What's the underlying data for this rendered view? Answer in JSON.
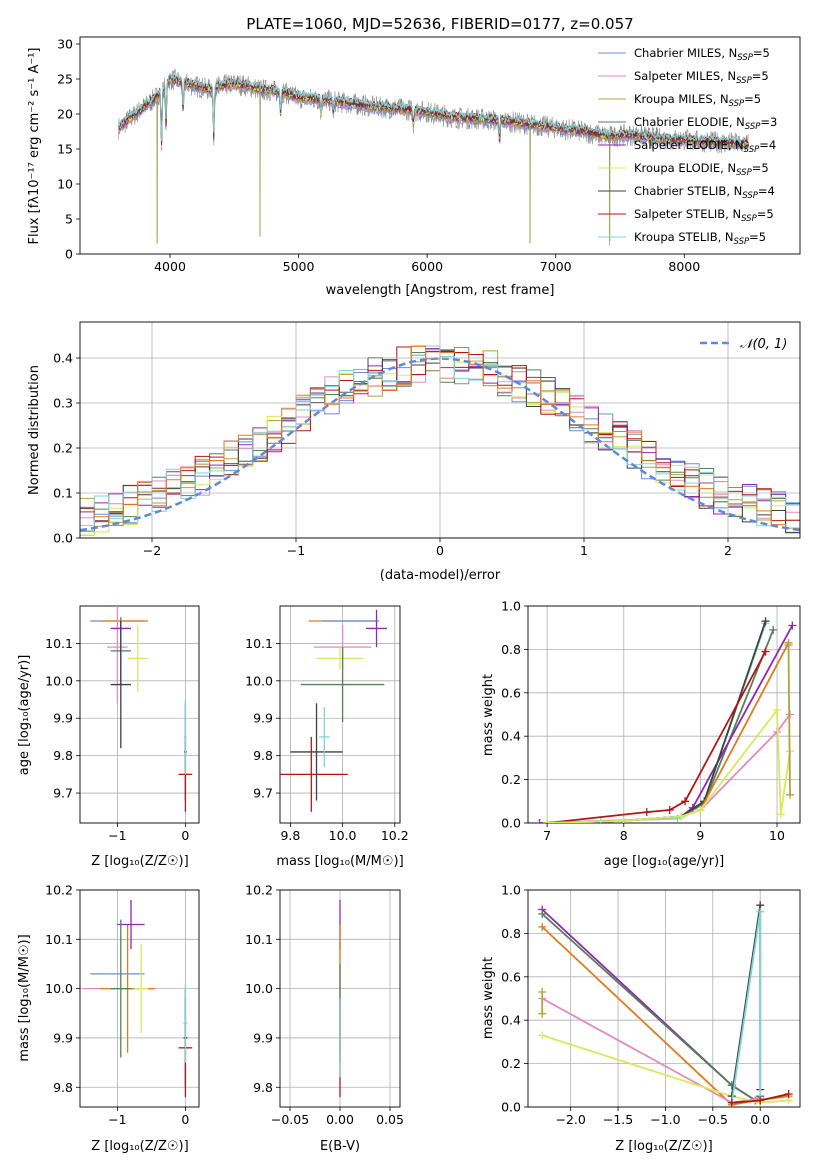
{
  "colors": {
    "chabrier_miles": "#6a8fd8",
    "salpeter_miles": "#e58ac0",
    "kroupa_miles": "#b5a23a",
    "chabrier_elodie": "#55805a",
    "salpeter_elodie": "#8e28b0",
    "kroupa_elodie": "#d8e860",
    "chabrier_stelib": "#404040",
    "salpeter_stelib": "#b01818",
    "kroupa_stelib": "#7fd6d8",
    "orange": "#e07b1e",
    "normal_line": "#5b8bd8"
  },
  "chart_data": [
    {
      "id": "spectrum",
      "type": "line",
      "title": "PLATE=1060, MJD=52636, FIBERID=0177, z=0.057",
      "xlabel": "wavelength [Angstrom, rest frame]",
      "ylabel": "Flux [fλ10⁻¹⁷ erg cm⁻² s⁻¹ A⁻¹]",
      "xlim": [
        3300,
        8900
      ],
      "ylim": [
        0,
        31
      ],
      "xticks": [
        4000,
        5000,
        6000,
        7000,
        8000
      ],
      "yticks": [
        0,
        5,
        10,
        15,
        20,
        25,
        30
      ],
      "grid": false,
      "legend_position": "top-right",
      "legend": [
        {
          "main": "Chabrier MILES, N",
          "sub": "SSP",
          "tail": "=5",
          "color_key": "chabrier_miles"
        },
        {
          "main": "Salpeter MILES, N",
          "sub": "SSP",
          "tail": "=5",
          "color_key": "salpeter_miles"
        },
        {
          "main": "Kroupa MILES, N",
          "sub": "SSP",
          "tail": "=5",
          "color_key": "kroupa_miles"
        },
        {
          "main": "Chabrier ELODIE, N",
          "sub": "SSP",
          "tail": "=3",
          "color_key": "chabrier_elodie"
        },
        {
          "main": "Salpeter ELODIE, N",
          "sub": "SSP",
          "tail": "=4",
          "color_key": "salpeter_elodie"
        },
        {
          "main": "Kroupa ELODIE, N",
          "sub": "SSP",
          "tail": "=5",
          "color_key": "kroupa_elodie"
        },
        {
          "main": "Chabrier STELIB, N",
          "sub": "SSP",
          "tail": "=4",
          "color_key": "chabrier_stelib"
        },
        {
          "main": "Salpeter STELIB, N",
          "sub": "SSP",
          "tail": "=5",
          "color_key": "salpeter_stelib"
        },
        {
          "main": "Kroupa STELIB, N",
          "sub": "SSP",
          "tail": "=5",
          "color_key": "kroupa_stelib"
        }
      ],
      "continuum": [
        [
          3600,
          18
        ],
        [
          3700,
          19.5
        ],
        [
          3800,
          21
        ],
        [
          3900,
          22.5
        ],
        [
          4000,
          25
        ],
        [
          4100,
          24.5
        ],
        [
          4200,
          24
        ],
        [
          4300,
          23.5
        ],
        [
          4400,
          24
        ],
        [
          4500,
          24.3
        ],
        [
          4600,
          24
        ],
        [
          4700,
          23.5
        ],
        [
          4800,
          23.3
        ],
        [
          4900,
          23
        ],
        [
          5000,
          22.3
        ],
        [
          5200,
          22
        ],
        [
          5400,
          21.5
        ],
        [
          5600,
          21
        ],
        [
          5800,
          20.7
        ],
        [
          6000,
          20.3
        ],
        [
          6200,
          19.5
        ],
        [
          6400,
          19.3
        ],
        [
          6600,
          19
        ],
        [
          6800,
          18.5
        ],
        [
          7000,
          18
        ],
        [
          7200,
          17.5
        ],
        [
          7400,
          16.8
        ],
        [
          7600,
          17
        ],
        [
          7800,
          16.5
        ],
        [
          8000,
          16.3
        ],
        [
          8200,
          16
        ],
        [
          8400,
          15.8
        ],
        [
          8500,
          15.7
        ]
      ],
      "absorption_lines": [
        [
          3934,
          8
        ],
        [
          3969,
          6
        ],
        [
          4102,
          4
        ],
        [
          4340,
          7
        ],
        [
          4861,
          3
        ],
        [
          5175,
          2
        ],
        [
          5270,
          1.5
        ],
        [
          5892,
          2
        ],
        [
          6563,
          3
        ]
      ],
      "spikes": [
        [
          3900,
          -21
        ],
        [
          4700,
          -21
        ],
        [
          6800,
          -17
        ],
        [
          7420,
          -15
        ]
      ]
    },
    {
      "id": "residuals",
      "type": "area",
      "xlabel": "(data-model)/error",
      "ylabel": "Normed distribution",
      "xlim": [
        -2.5,
        2.5
      ],
      "ylim": [
        0,
        0.48
      ],
      "xticks": [
        -2,
        -1,
        0,
        1,
        2
      ],
      "yticks": [
        0.0,
        0.1,
        0.2,
        0.3,
        0.4
      ],
      "grid": true,
      "legend_position": "top-right",
      "normal_label": "𝒩(0, 1)",
      "bin_width": 0.1,
      "bin_start": -2.5,
      "bins": 50
    },
    {
      "id": "age_vs_Z",
      "type": "scatter",
      "xlabel": "Z [log₁₀(Z/Z☉)]",
      "ylabel": "age  [log₁₀(age/yr)]",
      "xlim": [
        -1.55,
        0.2
      ],
      "ylim": [
        9.62,
        10.2
      ],
      "xticks": [
        -1,
        0
      ],
      "yticks": [
        9.7,
        9.8,
        9.9,
        10.0,
        10.1
      ],
      "grid": true,
      "crosses": [
        {
          "x": -1.0,
          "xerr": 0.4,
          "y": 10.16,
          "yerr": 0.0,
          "color_key": "chabrier_miles"
        },
        {
          "x": -0.9,
          "xerr": 0.35,
          "y": 10.16,
          "yerr": 0.0,
          "color_key": "orange"
        },
        {
          "x": -1.0,
          "xerr": 0.15,
          "y": 10.09,
          "yerr": 0.15,
          "color_key": "salpeter_miles"
        },
        {
          "x": -0.95,
          "xerr": 0.15,
          "y": 10.14,
          "yerr": 0.02,
          "color_key": "salpeter_elodie"
        },
        {
          "x": -0.7,
          "xerr": 0.15,
          "y": 10.06,
          "yerr": 0.09,
          "color_key": "kroupa_elodie"
        },
        {
          "x": -0.95,
          "xerr": 0.15,
          "y": 10.08,
          "yerr": 0.09,
          "color_key": "chabrier_elodie"
        },
        {
          "x": -0.95,
          "xerr": 0.15,
          "y": 9.99,
          "yerr": 0.17,
          "color_key": "chabrier_stelib"
        },
        {
          "x": 0.0,
          "xerr": 0.02,
          "y": 9.81,
          "yerr": 0.13,
          "color_key": "chabrier_stelib"
        },
        {
          "x": 0.0,
          "xerr": 0.1,
          "y": 9.75,
          "yerr": 0.1,
          "color_key": "salpeter_stelib"
        },
        {
          "x": 0.0,
          "xerr": 0.02,
          "y": 9.85,
          "yerr": 0.1,
          "color_key": "kroupa_stelib"
        }
      ]
    },
    {
      "id": "age_vs_mass",
      "type": "scatter",
      "xlabel": "mass [log₁₀(M/M☉)]",
      "ylabel": "",
      "xlim": [
        9.76,
        10.22
      ],
      "ylim": [
        9.62,
        10.2
      ],
      "xticks": [
        9.8,
        10.0,
        10.2
      ],
      "yticks": [
        9.7,
        9.8,
        9.9,
        10.0,
        10.1
      ],
      "grid": true,
      "crosses": [
        {
          "x": 10.0,
          "xerr": 0.13,
          "y": 10.16,
          "yerr": 0.0,
          "color_key": "orange"
        },
        {
          "x": 10.03,
          "xerr": 0.11,
          "y": 10.16,
          "yerr": 0.0,
          "color_key": "chabrier_miles"
        },
        {
          "x": 10.0,
          "xerr": 0.11,
          "y": 10.09,
          "yerr": 0.06,
          "color_key": "salpeter_miles"
        },
        {
          "x": 10.13,
          "xerr": 0.04,
          "y": 10.14,
          "yerr": 0.05,
          "color_key": "salpeter_elodie"
        },
        {
          "x": 9.99,
          "xerr": 0.09,
          "y": 10.06,
          "yerr": 0.03,
          "color_key": "kroupa_elodie"
        },
        {
          "x": 10.0,
          "xerr": 0.16,
          "y": 9.99,
          "yerr": 0.1,
          "color_key": "chabrier_elodie"
        },
        {
          "x": 9.9,
          "xerr": 0.1,
          "y": 9.81,
          "yerr": 0.13,
          "color_key": "chabrier_stelib"
        },
        {
          "x": 9.88,
          "xerr": 0.14,
          "y": 9.75,
          "yerr": 0.1,
          "color_key": "salpeter_stelib"
        },
        {
          "x": 9.93,
          "xerr": 0.02,
          "y": 9.85,
          "yerr": 0.08,
          "color_key": "kroupa_stelib"
        }
      ]
    },
    {
      "id": "mass_weight_vs_age",
      "type": "line",
      "xlabel": "age  [log₁₀(age/yr)]",
      "ylabel": "mass weight",
      "xlim": [
        6.75,
        10.3
      ],
      "ylim": [
        0.0,
        1.0
      ],
      "xticks": [
        7,
        8,
        9,
        10
      ],
      "yticks": [
        0.0,
        0.2,
        0.4,
        0.6,
        0.8,
        1.0
      ],
      "grid": true,
      "series": [
        {
          "color_key": "chabrier_elodie",
          "x": [
            7.0,
            8.0,
            8.75,
            9.05,
            9.95
          ],
          "y": [
            0.0,
            0.01,
            0.03,
            0.09,
            0.89
          ]
        },
        {
          "color_key": "kroupa_stelib",
          "x": [
            6.9,
            7.7,
            8.7,
            9.05,
            9.85
          ],
          "y": [
            0.0,
            0.01,
            0.02,
            0.1,
            0.92
          ]
        },
        {
          "color_key": "salpeter_elodie",
          "x": [
            6.9,
            8.0,
            8.75,
            8.9,
            10.2
          ],
          "y": [
            0.0,
            0.01,
            0.03,
            0.07,
            0.91
          ]
        },
        {
          "color_key": "chabrier_stelib",
          "x": [
            7.0,
            8.0,
            8.75,
            9.05,
            9.85
          ],
          "y": [
            0.0,
            0.01,
            0.03,
            0.1,
            0.93
          ]
        },
        {
          "color_key": "orange",
          "x": [
            7.0,
            8.0,
            8.75,
            9.0,
            10.15
          ],
          "y": [
            0.0,
            0.01,
            0.03,
            0.06,
            0.83
          ]
        },
        {
          "color_key": "salpeter_stelib",
          "x": [
            7.0,
            8.3,
            8.6,
            8.8,
            9.85
          ],
          "y": [
            0.0,
            0.05,
            0.06,
            0.1,
            0.79
          ]
        },
        {
          "color_key": "salpeter_miles",
          "x": [
            7.0,
            8.0,
            8.75,
            9.0,
            10.0,
            10.17
          ],
          "y": [
            0.0,
            0.01,
            0.03,
            0.06,
            0.42,
            0.5
          ]
        },
        {
          "color_key": "kroupa_elodie",
          "x": [
            7.0,
            8.0,
            8.75,
            9.0,
            10.0,
            10.05,
            10.17
          ],
          "y": [
            0.0,
            0.01,
            0.03,
            0.06,
            0.52,
            0.04,
            0.33
          ]
        },
        {
          "color_key": "kroupa_miles",
          "x": [
            10.15,
            10.17
          ],
          "y": [
            0.82,
            0.13
          ]
        }
      ]
    },
    {
      "id": "mass_vs_Z",
      "type": "scatter",
      "xlabel": "Z [log₁₀(Z/Z☉)]",
      "ylabel": "mass [log₁₀(M/M☉)]",
      "xlim": [
        -1.55,
        0.2
      ],
      "ylim": [
        9.76,
        10.2
      ],
      "xticks": [
        -1,
        0
      ],
      "yticks": [
        9.8,
        9.9,
        10.0,
        10.1,
        10.2
      ],
      "grid": true,
      "crosses": [
        {
          "x": -1.0,
          "xerr": 0.4,
          "y": 10.03,
          "yerr": 0.0,
          "color_key": "chabrier_miles"
        },
        {
          "x": -1.0,
          "xerr": 0.5,
          "y": 10.0,
          "yerr": 0.0,
          "color_key": "salpeter_miles"
        },
        {
          "x": -0.85,
          "xerr": 0.4,
          "y": 10.0,
          "yerr": 0.13,
          "color_key": "orange"
        },
        {
          "x": -0.8,
          "xerr": 0.2,
          "y": 10.13,
          "yerr": 0.05,
          "color_key": "salpeter_elodie"
        },
        {
          "x": -0.65,
          "xerr": 0.1,
          "y": 10.0,
          "yerr": 0.09,
          "color_key": "kroupa_elodie"
        },
        {
          "x": -0.95,
          "xerr": 0.15,
          "y": 10.0,
          "yerr": 0.14,
          "color_key": "chabrier_elodie"
        },
        {
          "x": 0.0,
          "xerr": 0.03,
          "y": 9.9,
          "yerr": 0.1,
          "color_key": "chabrier_stelib"
        },
        {
          "x": 0.0,
          "xerr": 0.1,
          "y": 9.88,
          "yerr": 0.1,
          "color_key": "salpeter_stelib"
        },
        {
          "x": 0.0,
          "xerr": 0.03,
          "y": 9.93,
          "yerr": 0.08,
          "color_key": "kroupa_stelib"
        }
      ]
    },
    {
      "id": "mass_vs_ebv",
      "type": "scatter",
      "xlabel": "E(B-V)",
      "ylabel": "",
      "xlim": [
        -0.06,
        0.06
      ],
      "ylim": [
        9.76,
        10.2
      ],
      "xticks": [
        -0.05,
        0.0,
        0.05
      ],
      "yticks": [
        9.8,
        9.9,
        10.0,
        10.1,
        10.2
      ],
      "grid": true,
      "crosses": [
        {
          "x": 0.0,
          "xerr": 0.0,
          "y": 10.13,
          "yerr": 0.05,
          "color_key": "salpeter_elodie"
        },
        {
          "x": 0.0,
          "xerr": 0.0,
          "y": 10.03,
          "yerr": 0.06,
          "color_key": "kroupa_elodie"
        },
        {
          "x": 0.0,
          "xerr": 0.0,
          "y": 10.0,
          "yerr": 0.13,
          "color_key": "orange"
        },
        {
          "x": 0.0,
          "xerr": 0.0,
          "y": 9.95,
          "yerr": 0.1,
          "color_key": "chabrier_elodie"
        },
        {
          "x": 0.0,
          "xerr": 0.0,
          "y": 9.88,
          "yerr": 0.1,
          "color_key": "salpeter_stelib"
        },
        {
          "x": 0.0,
          "xerr": 0.0,
          "y": 9.9,
          "yerr": 0.08,
          "color_key": "kroupa_stelib"
        }
      ]
    },
    {
      "id": "mass_weight_vs_Z",
      "type": "line",
      "xlabel": "Z [log₁₀(Z/Z☉)]",
      "ylabel": "mass weight",
      "xlim": [
        -2.45,
        0.42
      ],
      "ylim": [
        0.0,
        1.0
      ],
      "xticks": [
        -2.0,
        -1.5,
        -1.0,
        -0.5,
        0.0
      ],
      "yticks": [
        0.0,
        0.2,
        0.4,
        0.6,
        0.8,
        1.0
      ],
      "grid": true,
      "series": [
        {
          "color_key": "salpeter_elodie",
          "x": [
            -2.3,
            -0.3,
            -0.05,
            0.0
          ],
          "y": [
            0.91,
            0.1,
            0.03,
            0.05
          ]
        },
        {
          "color_key": "chabrier_elodie",
          "x": [
            -2.3,
            -0.3,
            -0.05,
            0.0
          ],
          "y": [
            0.89,
            0.1,
            0.03,
            0.05
          ]
        },
        {
          "color_key": "orange",
          "x": [
            -2.3,
            -0.3,
            -0.05,
            0.3
          ],
          "y": [
            0.83,
            0.01,
            0.03,
            0.05
          ]
        },
        {
          "color_key": "salpeter_miles",
          "x": [
            -2.3,
            -0.3,
            0.0
          ],
          "y": [
            0.5,
            0.02,
            0.04
          ]
        },
        {
          "color_key": "kroupa_elodie",
          "x": [
            -2.3,
            -0.3,
            0.0,
            0.3
          ],
          "y": [
            0.33,
            0.05,
            0.02,
            0.03
          ]
        },
        {
          "color_key": "chabrier_stelib",
          "x": [
            -0.3,
            0.0,
            0.0
          ],
          "y": [
            0.05,
            0.93,
            0.08
          ]
        },
        {
          "color_key": "kroupa_stelib",
          "x": [
            -0.3,
            0.0,
            0.0
          ],
          "y": [
            0.02,
            0.9,
            0.03
          ]
        },
        {
          "color_key": "salpeter_stelib",
          "x": [
            -0.3,
            0.0,
            0.3
          ],
          "y": [
            0.02,
            0.03,
            0.06
          ]
        },
        {
          "color_key": "kroupa_miles",
          "x": [
            -2.3,
            -2.3
          ],
          "y": [
            0.53,
            0.43
          ]
        }
      ]
    }
  ]
}
